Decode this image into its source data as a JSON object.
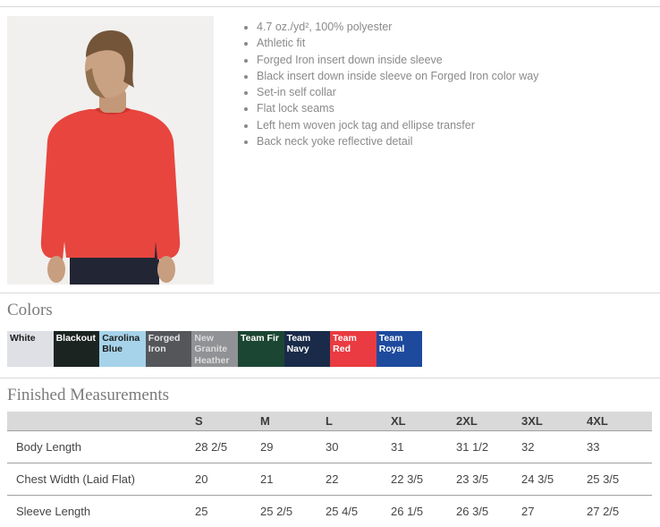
{
  "features": {
    "items": [
      "4.7 oz./yd², 100% polyester",
      "Athletic fit",
      "Forged Iron insert down inside sleeve",
      "Black insert down inside sleeve on Forged Iron color way",
      "Set-in self collar",
      "Flat lock seams",
      "Left hem woven jock tag and ellipse transfer",
      "Back neck yoke reflective detail"
    ]
  },
  "photo": {
    "shirt_color": "#e8453f",
    "background_color": "#f1f0ee"
  },
  "colors": {
    "heading": "Colors",
    "swatches": [
      {
        "name": "White",
        "bg": "#dfe0e6",
        "fg": "#1c1c1c",
        "heather": false
      },
      {
        "name": "Blackout",
        "bg": "#1c2422",
        "fg": "#ffffff",
        "heather": false
      },
      {
        "name": "Carolina Blue",
        "bg": "#a6d3e9",
        "fg": "#1c1c1c",
        "heather": false
      },
      {
        "name": "Forged Iron",
        "bg": "#54565a",
        "fg": "#e6e6e6",
        "heather": false
      },
      {
        "name": "New Granite Heather",
        "bg": "#909295",
        "fg": "#dcdcdc",
        "heather": true
      },
      {
        "name": "Team Fir",
        "bg": "#1c4634",
        "fg": "#ffffff",
        "heather": false
      },
      {
        "name": "Team Navy",
        "bg": "#1a2b49",
        "fg": "#ffffff",
        "heather": false
      },
      {
        "name": "Team Red",
        "bg": "#e93b41",
        "fg": "#ffffff",
        "heather": false
      },
      {
        "name": "Team Royal",
        "bg": "#1e4a9e",
        "fg": "#ffffff",
        "heather": false
      }
    ]
  },
  "measurements": {
    "heading": "Finished Measurements",
    "sizes": [
      "S",
      "M",
      "L",
      "XL",
      "2XL",
      "3XL",
      "4XL"
    ],
    "rows": [
      {
        "label": "Body Length",
        "values": [
          "28 2/5",
          "29",
          "30",
          "31",
          "31 1/2",
          "32",
          "33"
        ]
      },
      {
        "label": "Chest Width (Laid Flat)",
        "values": [
          "20",
          "21",
          "22",
          "22 3/5",
          "23 3/5",
          "24 3/5",
          "25 3/5"
        ]
      },
      {
        "label": "Sleeve Length",
        "values": [
          "25",
          "25 2/5",
          "25 4/5",
          "26 1/5",
          "26 3/5",
          "27",
          "27 2/5"
        ]
      }
    ]
  }
}
